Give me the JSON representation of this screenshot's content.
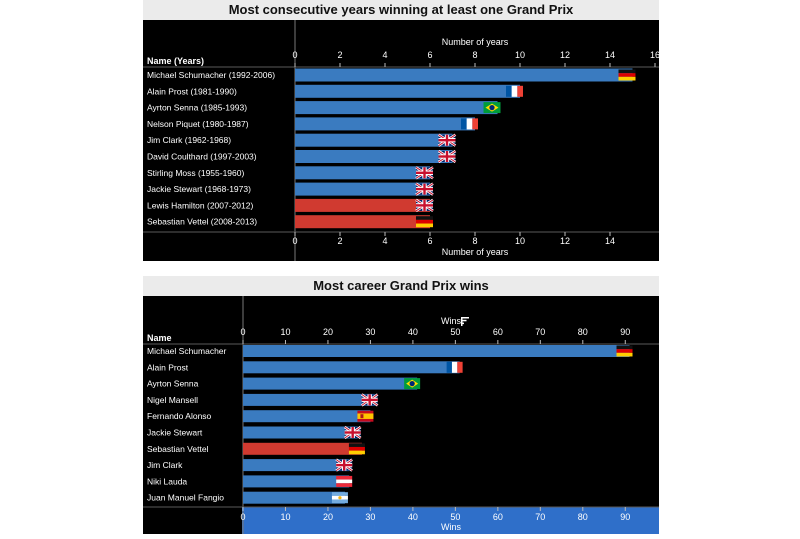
{
  "chart_data": [
    {
      "type": "bar",
      "orientation": "horizontal",
      "title": "Most consecutive years winning at least one Grand Prix",
      "row_header": "Name (Years)",
      "xlabel": "Number of years",
      "xlim": [
        0,
        16
      ],
      "top_ticks": [
        0,
        2,
        4,
        6,
        8,
        10,
        12,
        14,
        16
      ],
      "bottom_ticks": [
        0,
        2,
        4,
        6,
        8,
        10,
        12,
        14
      ],
      "categories": [
        "Michael Schumacher (1992-2006)",
        "Alain Prost (1981-1990)",
        "Ayrton Senna (1985-1993)",
        "Nelson Piquet (1980-1987)",
        "Jim Clark (1962-1968)",
        "David Coulthard (1997-2003)",
        "Stirling Moss (1955-1960)",
        "Jackie Stewart (1968-1973)",
        "Lewis Hamilton (2007-2012)",
        "Sebastian Vettel (2008-2013)"
      ],
      "values": [
        15,
        10,
        9,
        8,
        7,
        7,
        6,
        6,
        6,
        6
      ],
      "flags": [
        "germany",
        "france",
        "brazil",
        "france",
        "uk",
        "uk",
        "uk",
        "uk",
        "uk",
        "germany"
      ],
      "active": [
        false,
        false,
        false,
        false,
        false,
        false,
        false,
        false,
        true,
        true
      ]
    },
    {
      "type": "bar",
      "orientation": "horizontal",
      "title": "Most career Grand Prix wins",
      "row_header": "Name",
      "xlabel": "Wins",
      "xlim": [
        0,
        97
      ],
      "top_ticks": [
        0,
        10,
        20,
        30,
        40,
        50,
        60,
        70,
        80,
        90
      ],
      "bottom_ticks": [
        0,
        10,
        20,
        30,
        40,
        50,
        60,
        70,
        80,
        90
      ],
      "categories": [
        "Michael Schumacher",
        "Alain Prost",
        "Ayrton Senna",
        "Nigel Mansell",
        "Fernando Alonso",
        "Jackie Stewart",
        "Sebastian Vettel",
        "Jim Clark",
        "Niki Lauda",
        "Juan Manuel Fangio"
      ],
      "values": [
        91,
        51,
        41,
        31,
        30,
        27,
        28,
        25,
        25,
        24
      ],
      "flags": [
        "germany",
        "france",
        "brazil",
        "uk",
        "spain",
        "uk",
        "germany",
        "uk",
        "austria",
        "argentina"
      ],
      "active": [
        false,
        false,
        false,
        false,
        false,
        false,
        true,
        false,
        false,
        false
      ]
    }
  ],
  "colors": {
    "bar": "#3a7bc0",
    "bar_active": "#d03a30",
    "panel_bg": "#000000",
    "title_bg": "#ebebeb",
    "axis_band": "#2f6fc9"
  },
  "icons": {
    "sort": "sort-descending-icon"
  }
}
